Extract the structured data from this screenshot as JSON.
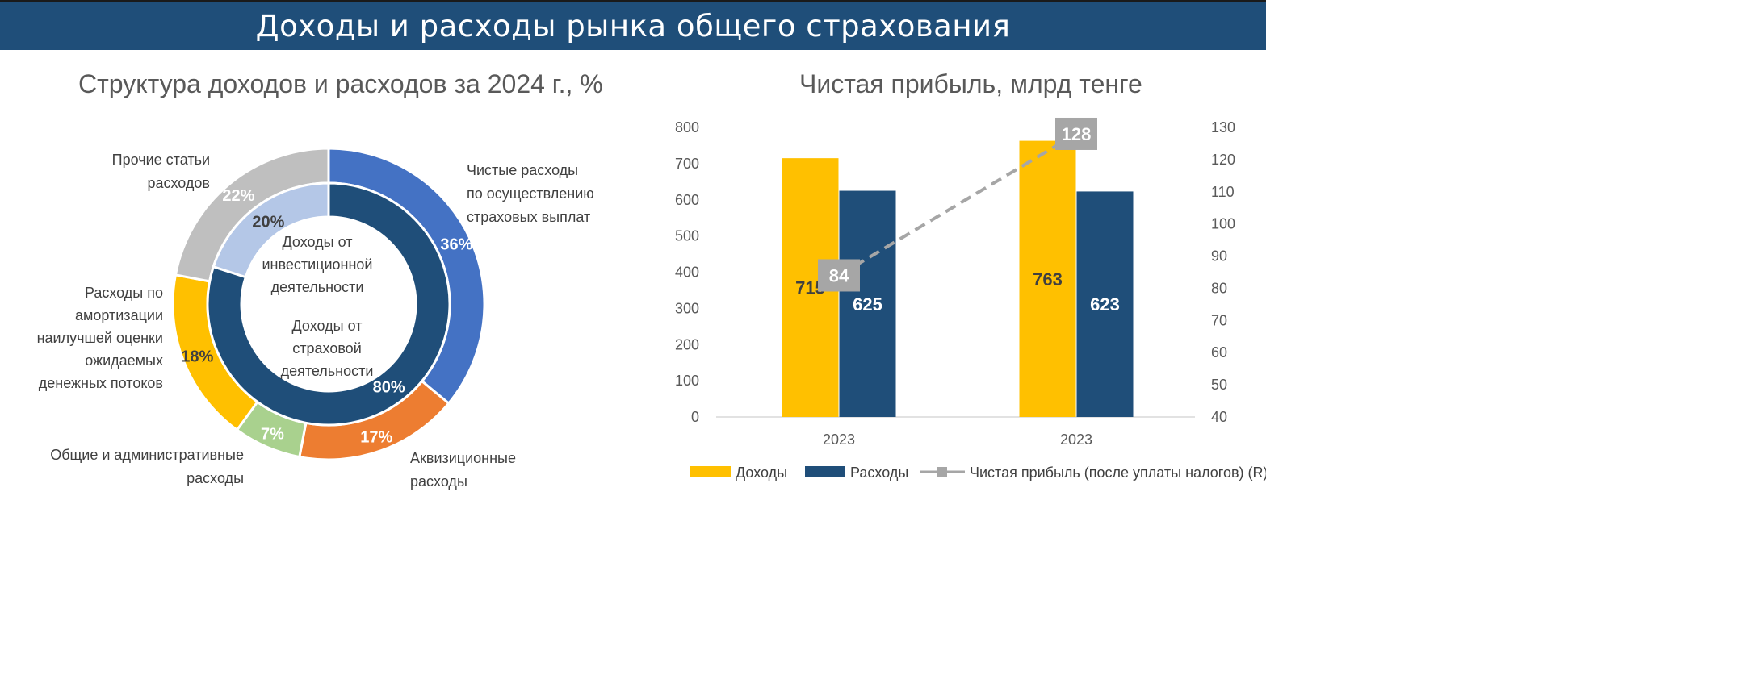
{
  "header": {
    "title": "Доходы и расходы рынка общего страхования"
  },
  "left_title": "Структура доходов и расходов за 2024 г., %",
  "right_title": "Чистая прибыль, млрд тенге",
  "colors": {
    "banner": "#1f4e79",
    "dohody": "#ffc000",
    "rashody": "#1f4e79",
    "line": "#a6a6a6",
    "payouts": "#4472c4",
    "acquisition": "#ed7d31",
    "admin": "#a9d18e",
    "amortization": "#ffc000",
    "other": "#bfbfbf",
    "investment": "#b4c7e7",
    "insurance": "#1f4e79"
  },
  "chart_data": [
    {
      "type": "pie",
      "subtype": "donut",
      "title": "Структура доходов и расходов за 2024 г., %",
      "outer_ring": [
        {
          "name": "Чистые расходы по осуществлению страховых выплат",
          "value": 36,
          "label": "36%",
          "color": "#4472c4",
          "lines": [
            "Чистые расходы",
            "по осуществлению",
            "страховых выплат"
          ]
        },
        {
          "name": "Аквизиционные расходы",
          "value": 17,
          "label": "17%",
          "color": "#ed7d31",
          "lines": [
            "Аквизиционные",
            "расходы"
          ]
        },
        {
          "name": "Общие и административные расходы",
          "value": 7,
          "label": "7%",
          "color": "#a9d18e",
          "lines": [
            "Общие и административные",
            "расходы"
          ]
        },
        {
          "name": "Расходы по амортизации наилучшей оценки ожидаемых денежных потоков",
          "value": 18,
          "label": "18%",
          "color": "#ffc000",
          "lines": [
            "Расходы по",
            "амортизации",
            "наилучшей оценки",
            "ожидаемых",
            "денежных потоков"
          ]
        },
        {
          "name": "Прочие статьи расходов",
          "value": 22,
          "label": "22%",
          "color": "#bfbfbf",
          "lines": [
            "Прочие статьи",
            "расходов"
          ]
        }
      ],
      "inner_ring": [
        {
          "name": "Доходы от страховой деятельности",
          "value": 80,
          "label": "80%",
          "color": "#1f4e79",
          "lines": [
            "Доходы от",
            "страховой",
            "деятельности"
          ]
        },
        {
          "name": "Доходы от инвестиционной деятельности",
          "value": 20,
          "label": "20%",
          "color": "#b4c7e7",
          "lines": [
            "Доходы от",
            "инвестиционной",
            "деятельности"
          ]
        }
      ]
    },
    {
      "type": "bar",
      "title": "Чистая прибыль, млрд тенге",
      "categories": [
        "2023",
        "2023"
      ],
      "series": [
        {
          "name": "Доходы",
          "values": [
            715,
            763
          ],
          "color": "#ffc000"
        },
        {
          "name": "Расходы",
          "values": [
            625,
            623
          ],
          "color": "#1f4e79"
        },
        {
          "name": "Чистая прибыль (после уплаты налогов) (R)",
          "type": "line",
          "axis": "right",
          "values": [
            84,
            128
          ],
          "color": "#a6a6a6"
        }
      ],
      "ylim_left": [
        0,
        800
      ],
      "yticks_left": [
        "0",
        "100",
        "200",
        "300",
        "400",
        "500",
        "600",
        "700",
        "800"
      ],
      "ylim_right": [
        40,
        130
      ],
      "yticks_right": [
        "40",
        "50",
        "60",
        "70",
        "80",
        "90",
        "100",
        "110",
        "120",
        "130"
      ],
      "grid": false,
      "legend_position": "bottom"
    }
  ]
}
